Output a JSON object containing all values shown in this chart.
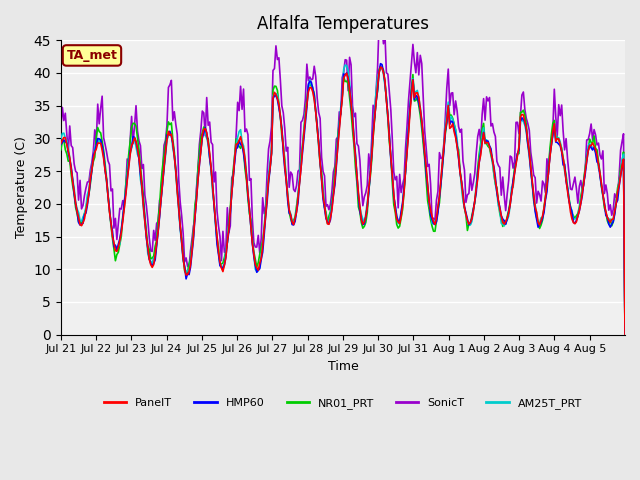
{
  "title": "Alfalfa Temperatures",
  "xlabel": "Time",
  "ylabel": "Temperature (C)",
  "ylim": [
    0,
    45
  ],
  "yticks": [
    0,
    5,
    10,
    15,
    20,
    25,
    30,
    35,
    40,
    45
  ],
  "annotation_text": "TA_met",
  "annotation_color": "#8B0000",
  "annotation_bg": "#FFFF99",
  "annotation_border": "#8B0000",
  "series_colors": {
    "PanelT": "#FF0000",
    "HMP60": "#0000FF",
    "NR01_PRT": "#00CC00",
    "SonicT": "#9900CC",
    "AM25T_PRT": "#00CCCC"
  },
  "series_linewidth": 1.2,
  "bg_color": "#E8E8E8",
  "plot_bg": "#F0F0F0",
  "grid_color": "#FFFFFF",
  "n_days": 16,
  "tick_labels": [
    "Jul 21",
    "Jul 22",
    "Jul 23",
    "Jul 24",
    "Jul 25",
    "Jul 26",
    "Jul 27",
    "Jul 28",
    "Jul 29",
    "Jul 30",
    "Jul 31",
    "Aug 1",
    "Aug 2",
    "Aug 3",
    "Aug 4",
    "Aug 5"
  ],
  "tick_positions": [
    0,
    1,
    2,
    3,
    4,
    5,
    6,
    7,
    8,
    9,
    10,
    11,
    12,
    13,
    14,
    15
  ],
  "daily_peaks": [
    30,
    29.5,
    30,
    31,
    31.5,
    30,
    37,
    38,
    40,
    41,
    37,
    32,
    29.5,
    33.5,
    30,
    29
  ],
  "daily_troughs": [
    17,
    13,
    10.5,
    9,
    10,
    10,
    17,
    17,
    17,
    17,
    17,
    17,
    17,
    17,
    17,
    17
  ]
}
